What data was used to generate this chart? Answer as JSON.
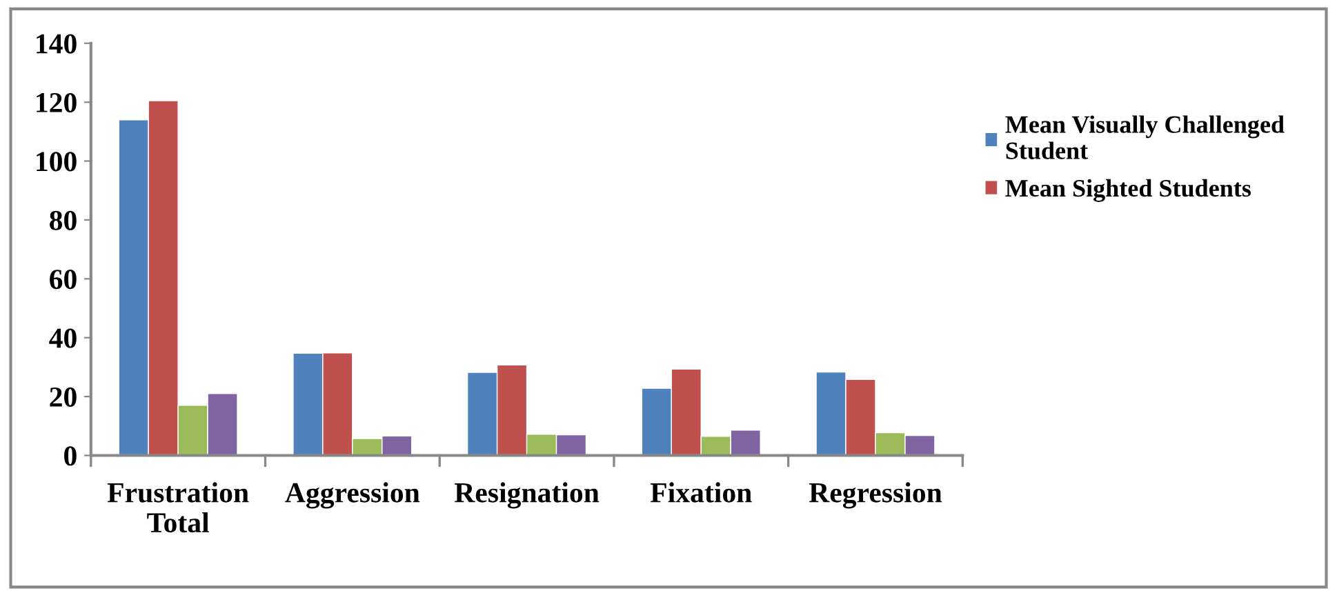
{
  "chart_data": {
    "type": "bar",
    "categories": [
      "Frustration\nTotal",
      "Aggression",
      "Resignation",
      "Fixation",
      "Regression"
    ],
    "series": [
      {
        "name": "Mean Visually Challenged\nStudent",
        "color": "#4f81bd",
        "values": [
          114,
          34.7,
          28.2,
          22.8,
          28.3
        ]
      },
      {
        "name": "Mean Sighted Students",
        "color": "#c0504d",
        "values": [
          120.5,
          34.8,
          30.7,
          29.3,
          25.8
        ]
      },
      {
        "color": "#9bbb59",
        "values": [
          17,
          5.7,
          7.2,
          6.5,
          7.7
        ]
      },
      {
        "color": "#8064a2",
        "values": [
          21,
          6.6,
          7,
          8.6,
          6.8
        ]
      }
    ],
    "ylim": [
      0,
      140
    ],
    "yticks": [
      0,
      20,
      40,
      60,
      80,
      100,
      120,
      140
    ],
    "grid": false,
    "legend": "right"
  }
}
